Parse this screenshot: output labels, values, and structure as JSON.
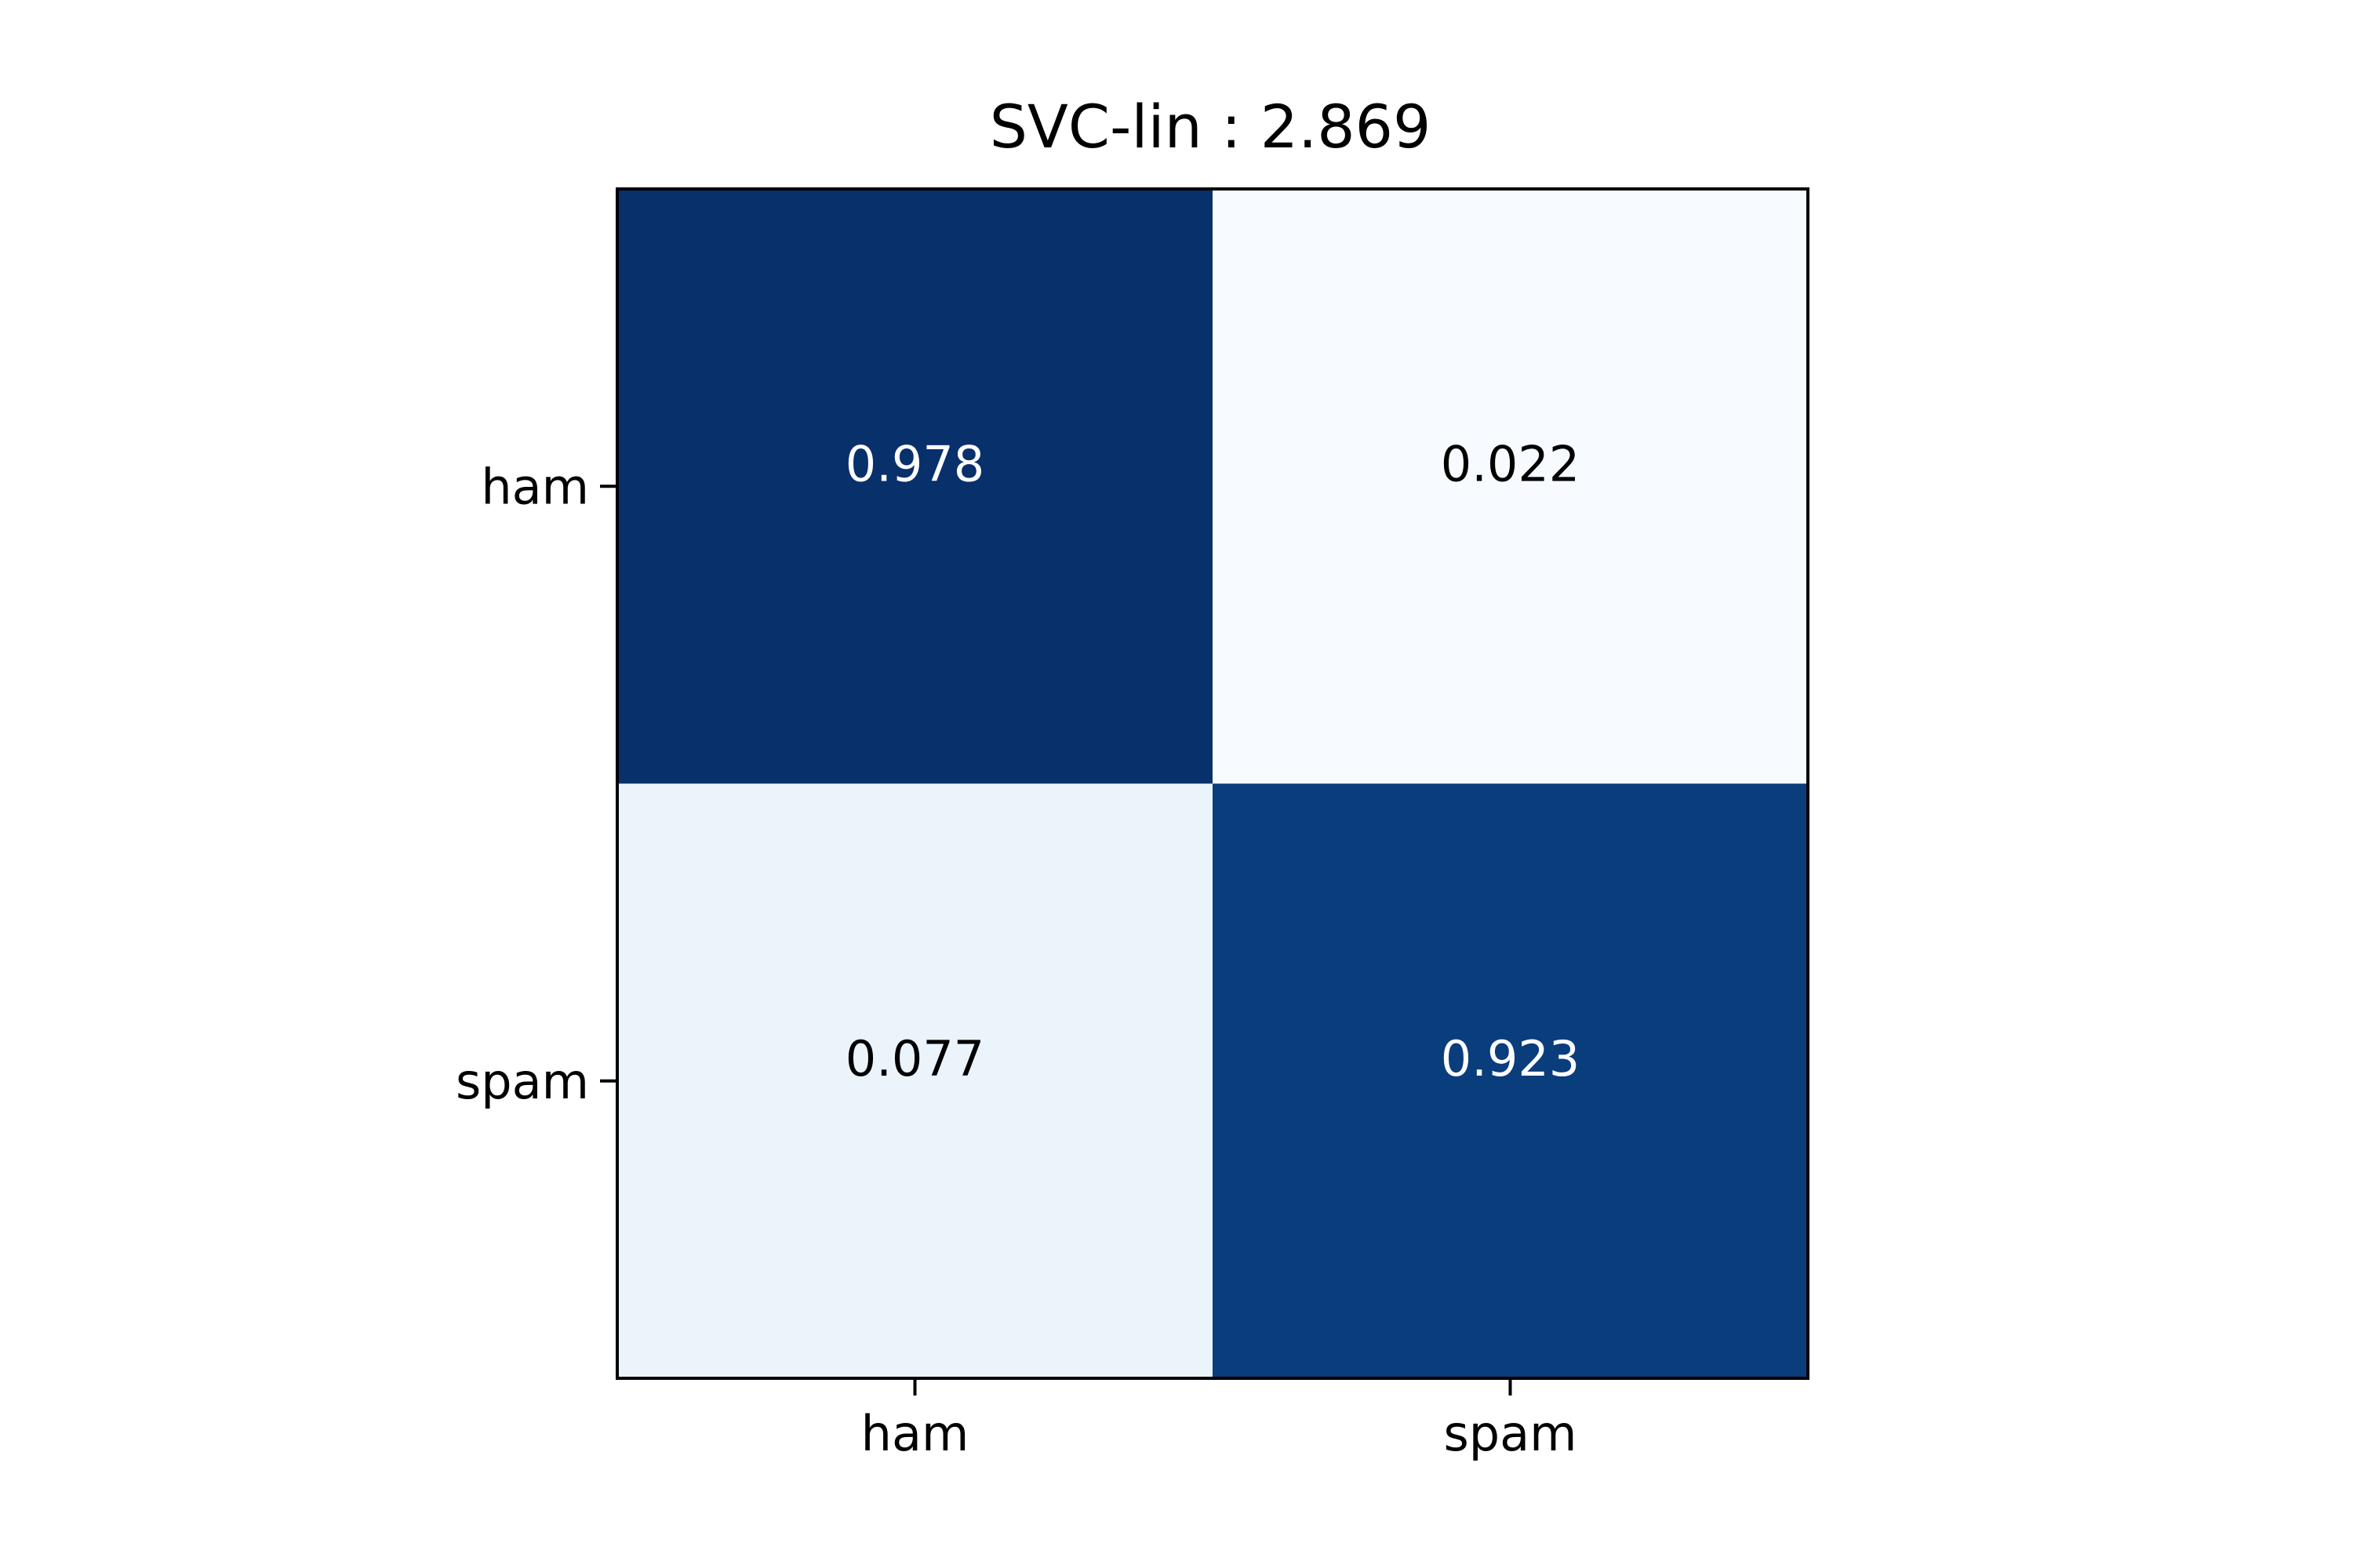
{
  "chart_data": {
    "type": "heatmap",
    "title": "SVC-lin : 2.869",
    "xlabel": "",
    "ylabel": "",
    "x_categories": [
      "ham",
      "spam"
    ],
    "y_categories": [
      "ham",
      "spam"
    ],
    "values": [
      [
        0.978,
        0.022
      ],
      [
        0.077,
        0.923
      ]
    ],
    "value_labels": [
      [
        "0.978",
        "0.022"
      ],
      [
        "0.077",
        "0.923"
      ]
    ],
    "colormap": "Blues",
    "cell_colors": [
      [
        "#08306b",
        "#f7fbff"
      ],
      [
        "#ebf3fb",
        "#0a3d7c"
      ]
    ],
    "label_colors": [
      [
        "#ffffff",
        "#000000"
      ],
      [
        "#000000",
        "#ffffff"
      ]
    ],
    "grid": false
  }
}
